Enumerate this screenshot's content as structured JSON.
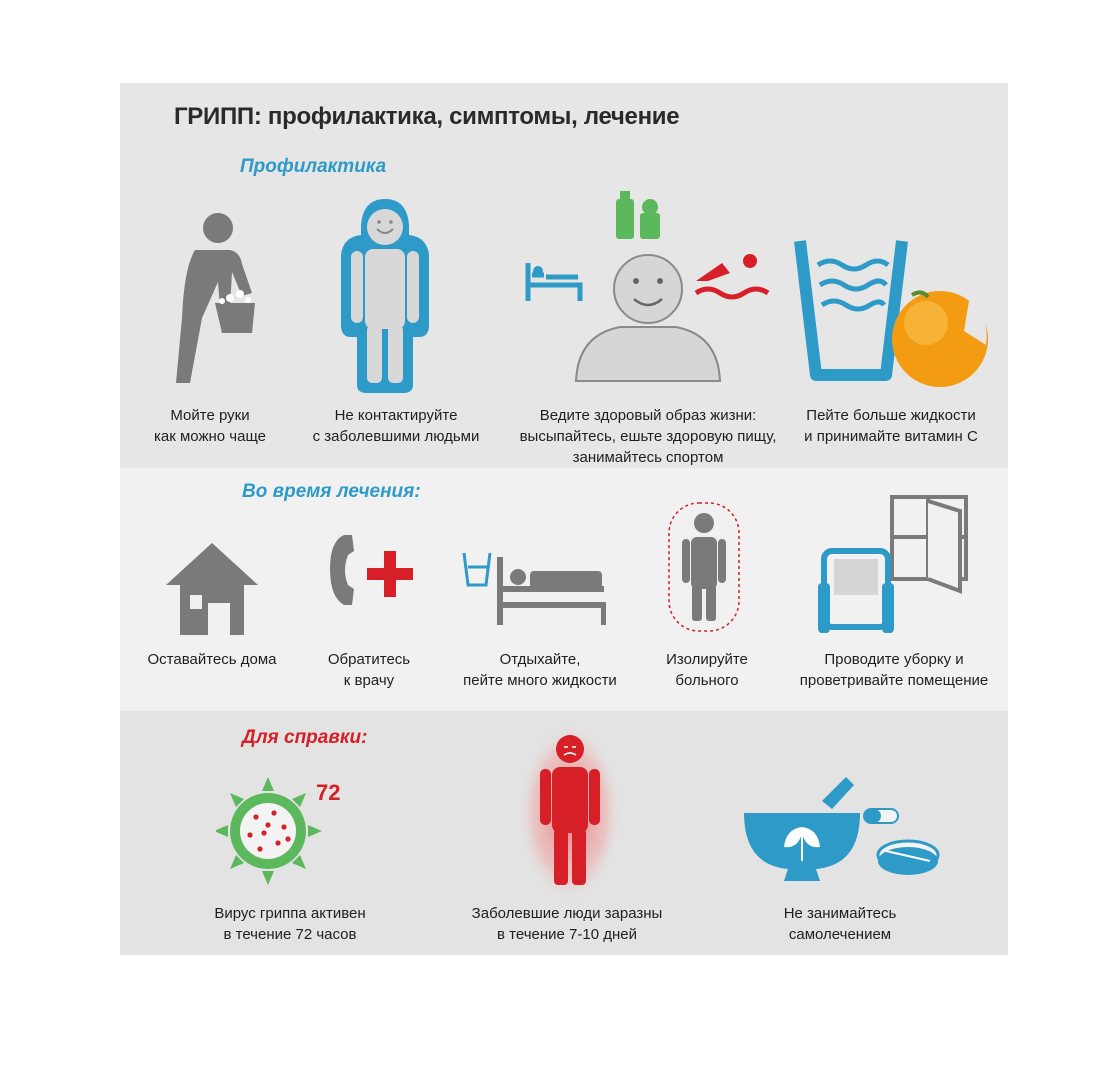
{
  "title": "ГРИПП: профилактика, симптомы, лечение",
  "sections": {
    "prevention": "Профилактика",
    "treatment": "Во время лечения:",
    "reference": "Для справки:"
  },
  "prevention": [
    {
      "line1": "Мойте руки",
      "line2": "как можно чаще",
      "line3": ""
    },
    {
      "line1": "Не контактируйте",
      "line2": "с заболевшими людьми",
      "line3": ""
    },
    {
      "line1": "Ведите здоровый образ жизни:",
      "line2": "высыпайтесь, ешьте здоровую пищу,",
      "line3": "занимайтесь спортом"
    },
    {
      "line1": "Пейте больше жидкости",
      "line2": "и принимайте витамин С",
      "line3": ""
    }
  ],
  "treatment": [
    {
      "line1": "Оставайтесь дома",
      "line2": ""
    },
    {
      "line1": "Обратитесь",
      "line2": "к врачу"
    },
    {
      "line1": "Отдыхайте,",
      "line2": "пейте много жидкости"
    },
    {
      "line1": "Изолируйте",
      "line2": "больного"
    },
    {
      "line1": "Проводите уборку и",
      "line2": "проветривайте помещение"
    }
  ],
  "reference": [
    {
      "line1": "Вирус гриппа активен",
      "line2": "в течение 72 часов"
    },
    {
      "line1": "Заболевшие люди заразны",
      "line2": "в течение 7-10 дней"
    },
    {
      "line1": "Не занимайтесь",
      "line2": "самолечением"
    }
  ],
  "virus_number": "72",
  "colors": {
    "blue": "#2e9ac7",
    "red": "#d61f26",
    "green": "#5cb85c",
    "gray": "#7f7f7f",
    "orange": "#f39c12"
  }
}
